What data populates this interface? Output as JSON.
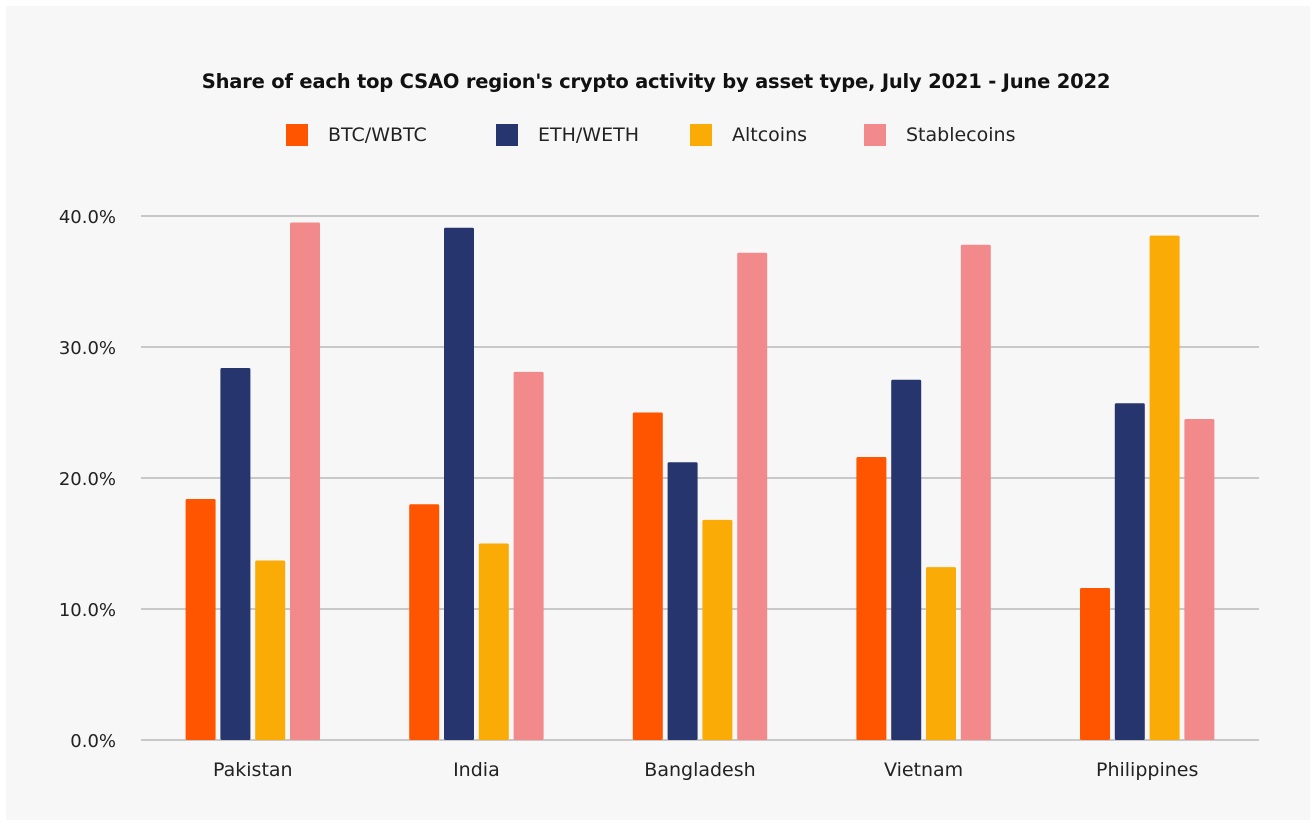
{
  "chart_data": {
    "type": "bar",
    "title": "Share of each top CSAO region's crypto activity by asset type, July 2021 - June 2022",
    "xlabel": "",
    "ylabel": "",
    "categories": [
      "Pakistan",
      "India",
      "Bangladesh",
      "Vietnam",
      "Philippines"
    ],
    "series": [
      {
        "name": "BTC/WBTC",
        "color": "#ff5500",
        "values": [
          18.4,
          18.0,
          25.0,
          21.6,
          11.6
        ]
      },
      {
        "name": "ETH/WETH",
        "color": "#27356e",
        "values": [
          28.4,
          39.1,
          21.2,
          27.5,
          25.7
        ]
      },
      {
        "name": "Altcoins",
        "color": "#fbab06",
        "values": [
          13.7,
          15.0,
          16.8,
          13.2,
          38.5
        ]
      },
      {
        "name": "Stablecoins",
        "color": "#f2898a",
        "values": [
          39.5,
          28.1,
          37.2,
          37.8,
          24.5
        ]
      }
    ],
    "ylim": [
      0,
      40
    ],
    "yticks": [
      0,
      10,
      20,
      30,
      40
    ],
    "ytick_labels": [
      "0.0%",
      "10.0%",
      "20.0%",
      "30.0%",
      "40.0%"
    ],
    "grid": true,
    "legend_position": "top-center"
  }
}
